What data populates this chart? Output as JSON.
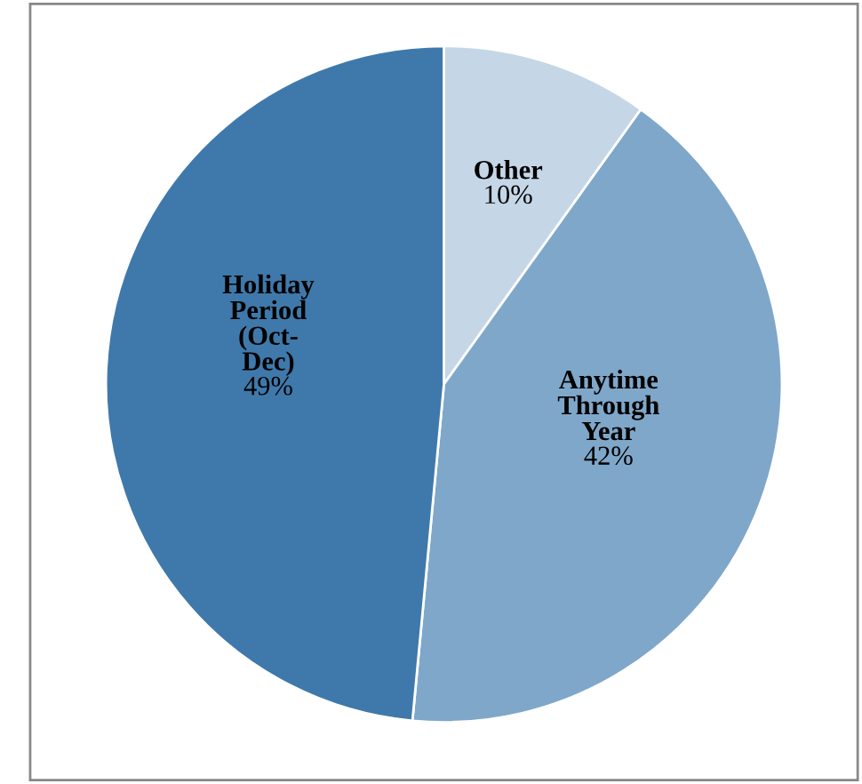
{
  "chart_data": {
    "type": "pie",
    "categories": [
      "Other",
      "Anytime\nThrough\nYear",
      "Holiday\nPeriod\n(Oct-\nDec)"
    ],
    "values": [
      10,
      42,
      49
    ],
    "colors": [
      "#c5d6e7",
      "#7fa7c9",
      "#3f79ab"
    ],
    "value_labels": [
      "10%",
      "42%",
      "49%"
    ],
    "legend": false
  }
}
